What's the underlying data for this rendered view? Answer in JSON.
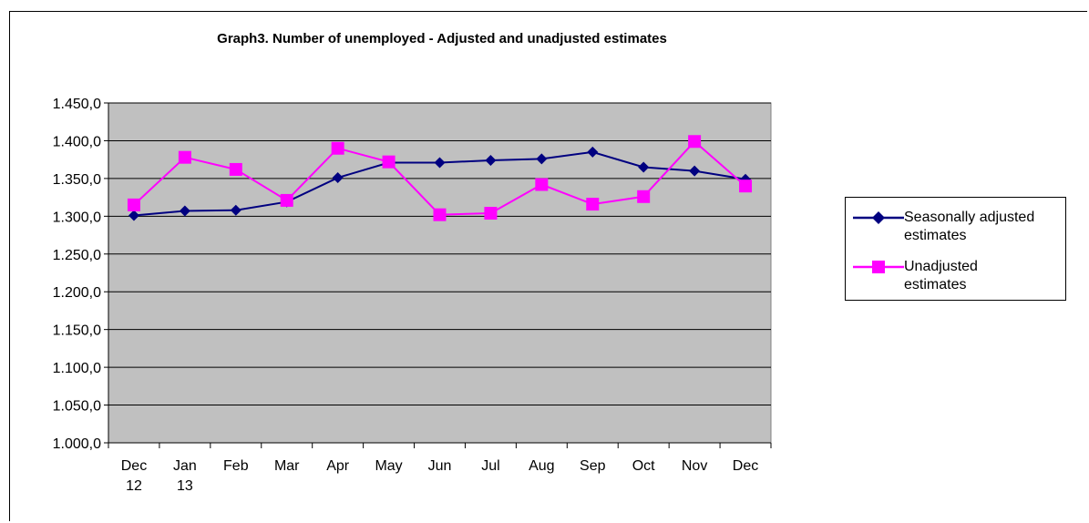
{
  "chart_data": {
    "type": "line",
    "title": "Graph3. Number of unemployed - Adjusted and unadjusted estimates",
    "categories": [
      [
        "Dec",
        "12"
      ],
      [
        "Jan",
        "13"
      ],
      [
        "Feb"
      ],
      [
        "Mar"
      ],
      [
        "Apr"
      ],
      [
        "May"
      ],
      [
        "Jun"
      ],
      [
        "Jul"
      ],
      [
        "Aug"
      ],
      [
        "Sep"
      ],
      [
        "Oct"
      ],
      [
        "Nov"
      ],
      [
        "Dec"
      ]
    ],
    "y_ticks": [
      "1.000,0",
      "1.050,0",
      "1.100,0",
      "1.150,0",
      "1.200,0",
      "1.250,0",
      "1.300,0",
      "1.350,0",
      "1.400,0",
      "1.450,0"
    ],
    "ylim": [
      1000,
      1450
    ],
    "y_step": 50,
    "grid": true,
    "plot_background": "#c0c0c0",
    "legend_position": "right",
    "series": [
      {
        "name": "Seasonally adjusted estimates",
        "legend_lines": [
          "Seasonally adjusted",
          "estimates"
        ],
        "color": "#000080",
        "marker": "diamond",
        "values": [
          1301,
          1307,
          1308,
          1319,
          1351,
          1371,
          1371,
          1374,
          1376,
          1385,
          1365,
          1360,
          1349
        ]
      },
      {
        "name": "Unadjusted estimates",
        "legend_lines": [
          "Unadjusted",
          "estimates"
        ],
        "color": "#ff00ff",
        "marker": "square",
        "values": [
          1315,
          1378,
          1362,
          1321,
          1390,
          1372,
          1302,
          1304,
          1342,
          1316,
          1326,
          1399,
          1340
        ]
      }
    ]
  }
}
